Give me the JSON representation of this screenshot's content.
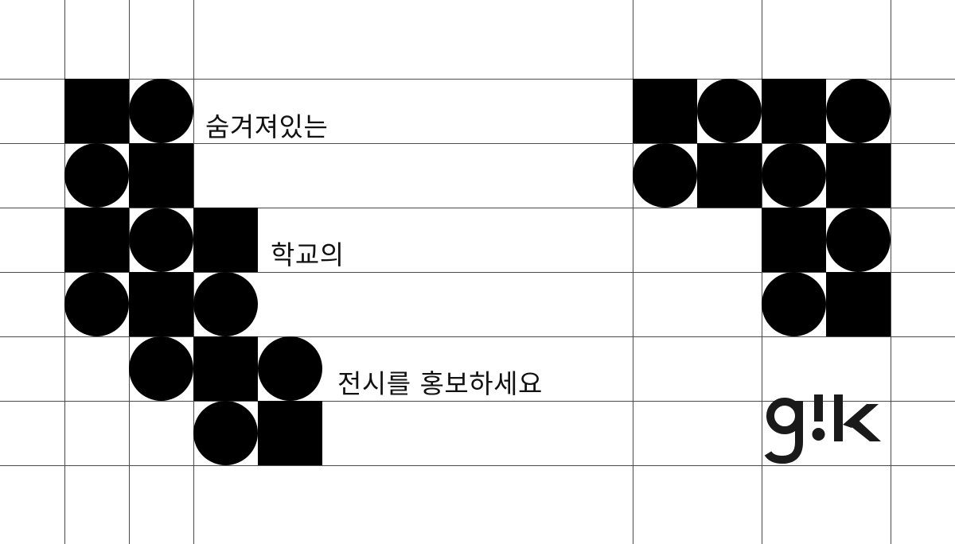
{
  "taglines": {
    "line1": "숨겨져있는",
    "line2": "학교의",
    "line3": "전시를 홍보하세요"
  },
  "logo": {
    "text": "g!k",
    "color": "#1a1a1a"
  },
  "colors": {
    "background": "#ffffff",
    "grid_line": "#4a4a4a",
    "shape_fill": "#000000"
  }
}
